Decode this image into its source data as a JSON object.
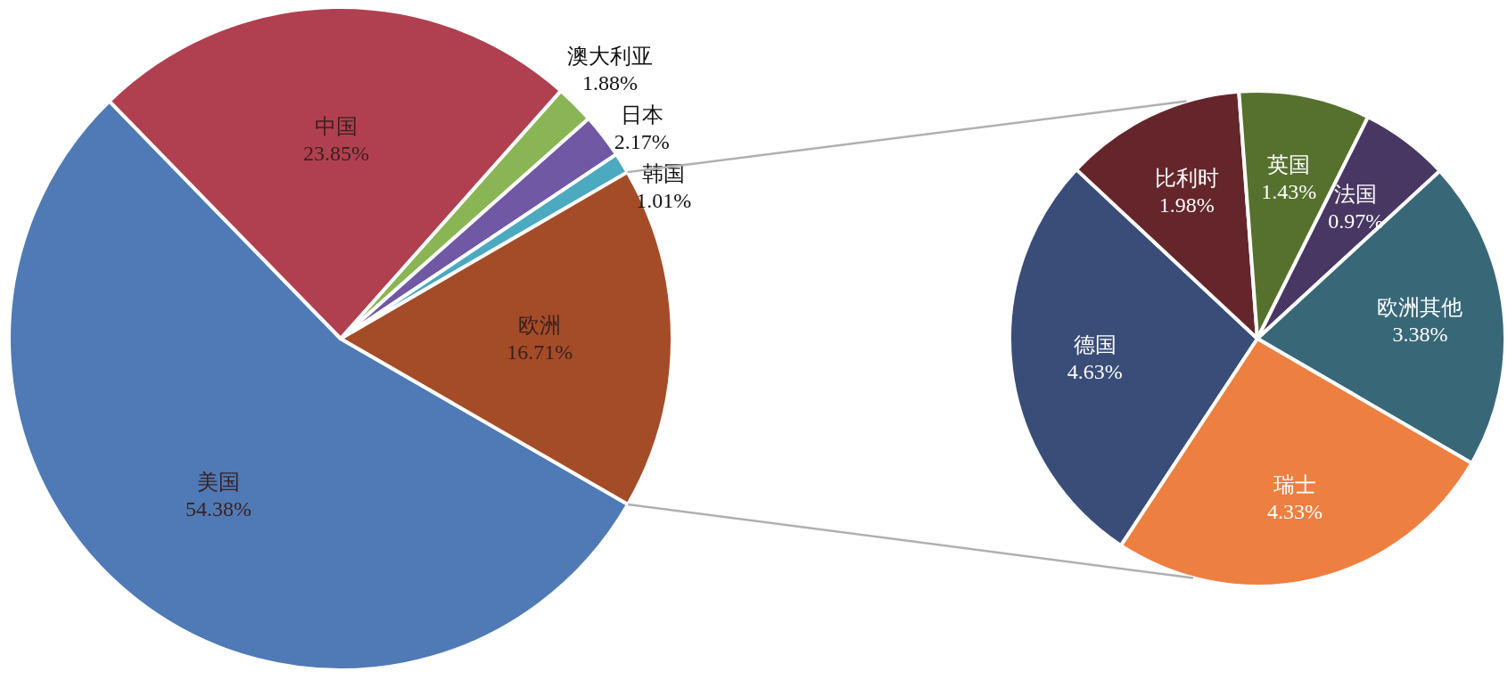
{
  "chart_data": [
    {
      "type": "pie",
      "categories": [
        "美国",
        "中国",
        "澳大利亚",
        "日本",
        "韩国",
        "欧洲"
      ],
      "values": [
        54.38,
        23.85,
        1.88,
        2.17,
        1.01,
        16.71
      ],
      "value_labels": [
        "54.38%",
        "23.85%",
        "1.88%",
        "2.17%",
        "1.01%",
        "16.71%"
      ],
      "colors": [
        "#4f7ab5",
        "#b04050",
        "#8ab555",
        "#7058a5",
        "#4ba9c0",
        "#a44c28"
      ]
    },
    {
      "type": "pie",
      "categories": [
        "德国",
        "比利时",
        "英国",
        "法国",
        "欧洲其他",
        "瑞士"
      ],
      "values": [
        4.63,
        1.98,
        1.43,
        0.97,
        3.38,
        4.33
      ],
      "value_labels": [
        "4.63%",
        "1.98%",
        "1.43%",
        "0.97%",
        "3.38%",
        "4.33%"
      ],
      "colors": [
        "#394d78",
        "#65262b",
        "#56712e",
        "#493763",
        "#386878",
        "#ed7f41"
      ]
    }
  ]
}
